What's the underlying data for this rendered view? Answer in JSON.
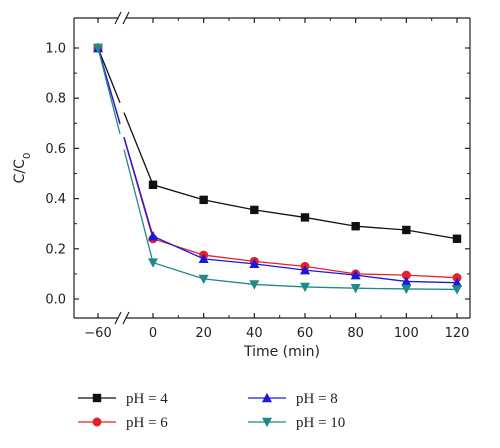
{
  "chart_data": {
    "type": "line",
    "xlabel": "Time (min)",
    "ylabel_main": "C/C",
    "ylabel_sub": "0",
    "x_ticks": [
      -60,
      0,
      20,
      40,
      60,
      80,
      100,
      120
    ],
    "y_ticks": [
      0.0,
      0.2,
      0.4,
      0.6,
      0.8,
      1.0
    ],
    "y_tick_labels": [
      "0.0",
      "0.2",
      "0.4",
      "0.6",
      "0.8",
      "1.0"
    ],
    "x_tick_labels": [
      "−60",
      "0",
      "20",
      "40",
      "60",
      "80",
      "100",
      "120"
    ],
    "xlim": [
      -60,
      120
    ],
    "ylim": [
      -0.08,
      1.08
    ],
    "axis_break": true,
    "legend_placement": "bottom",
    "x": [
      -60,
      0,
      20,
      40,
      60,
      80,
      100,
      120
    ],
    "series": [
      {
        "name": "pH = 4",
        "color": "#111111",
        "marker": "square",
        "values": [
          1.0,
          0.455,
          0.395,
          0.355,
          0.325,
          0.29,
          0.275,
          0.24
        ]
      },
      {
        "name": "pH = 6",
        "color": "#e8202a",
        "marker": "circle",
        "values": [
          1.0,
          0.24,
          0.175,
          0.15,
          0.13,
          0.1,
          0.095,
          0.085
        ]
      },
      {
        "name": "pH = 8",
        "color": "#1a1adf",
        "marker": "triangle-up",
        "values": [
          1.0,
          0.25,
          0.16,
          0.14,
          0.115,
          0.095,
          0.07,
          0.065
        ]
      },
      {
        "name": "pH = 10",
        "color": "#1f8a8a",
        "marker": "triangle-down",
        "values": [
          1.0,
          0.145,
          0.08,
          0.058,
          0.048,
          0.043,
          0.04,
          0.038
        ]
      }
    ]
  }
}
